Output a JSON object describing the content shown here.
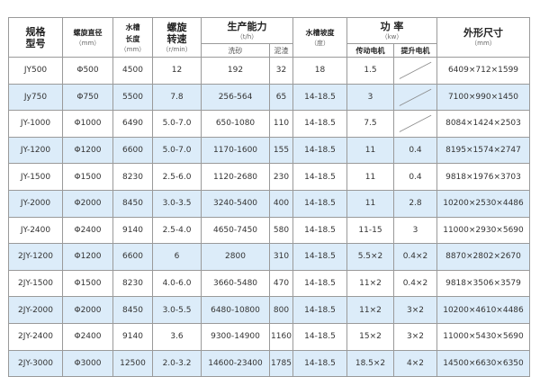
{
  "headers": {
    "model": [
      "规格",
      "型号"
    ],
    "screw_diameter": "螺旋直径",
    "screw_diameter_unit": "（mm）",
    "tank_length": [
      "水槽",
      "长度"
    ],
    "tank_length_unit": "（mm）",
    "screw_speed": [
      "螺旋",
      "转速"
    ],
    "screw_speed_unit": "（r/min）",
    "capacity": "生产能力",
    "capacity_unit": "（t/h）",
    "capacity_sand": "洗砂",
    "capacity_slurry": "泥渣",
    "tank_slope": "水槽坡度",
    "tank_slope_unit": "（度）",
    "power": "功  率",
    "power_unit": "（kw）",
    "power_drive": "传动电机",
    "power_lift": "提升电机",
    "dimensions": "外形尺寸",
    "dimensions_unit": "（mm）"
  },
  "rows": [
    {
      "model": "JY500",
      "diameter": "Φ500",
      "length": "4500",
      "speed": "12",
      "sand": "192",
      "slurry": "32",
      "slope": "18",
      "drive": "1.5",
      "lift": "",
      "dims": "6409×712×1599"
    },
    {
      "model": "Jy750",
      "diameter": "Φ750",
      "length": "5500",
      "speed": "7.8",
      "sand": "256-564",
      "slurry": "65",
      "slope": "14-18.5",
      "drive": "3",
      "lift": "",
      "dims": "7100×990×1450"
    },
    {
      "model": "JY-1000",
      "diameter": "Φ1000",
      "length": "6490",
      "speed": "5.0-7.0",
      "sand": "650-1080",
      "slurry": "110",
      "slope": "14-18.5",
      "drive": "7.5",
      "lift": "",
      "dims": "8084×1424×2503"
    },
    {
      "model": "JY-1200",
      "diameter": "Φ1200",
      "length": "6600",
      "speed": "5.0-7.0",
      "sand": "1170-1600",
      "slurry": "155",
      "slope": "14-18.5",
      "drive": "11",
      "lift": "0.4",
      "dims": "8195×1574×2747"
    },
    {
      "model": "JY-1500",
      "diameter": "Φ1500",
      "length": "8230",
      "speed": "2.5-6.0",
      "sand": "1120-2680",
      "slurry": "230",
      "slope": "14-18.5",
      "drive": "11",
      "lift": "0.4",
      "dims": "9818×1976×3703"
    },
    {
      "model": "JY-2000",
      "diameter": "Φ2000",
      "length": "8450",
      "speed": "3.0-3.5",
      "sand": "3240-5400",
      "slurry": "400",
      "slope": "14-18.5",
      "drive": "11",
      "lift": "2.8",
      "dims": "10200×2530×4486"
    },
    {
      "model": "JY-2400",
      "diameter": "Φ2400",
      "length": "9140",
      "speed": "2.5-4.0",
      "sand": "4650-7450",
      "slurry": "580",
      "slope": "14-18.5",
      "drive": "11-15",
      "lift": "3",
      "dims": "11000×2930×5690"
    },
    {
      "model": "2JY-1200",
      "diameter": "Φ1200",
      "length": "6600",
      "speed": "6",
      "sand": "2800",
      "slurry": "310",
      "slope": "14-18.5",
      "drive": "5.5×2",
      "lift": "0.4×2",
      "dims": "8870×2802×2670"
    },
    {
      "model": "2JY-1500",
      "diameter": "Φ1500",
      "length": "8230",
      "speed": "4.0-6.0",
      "sand": "3660-5480",
      "slurry": "470",
      "slope": "14-18.5",
      "drive": "11×2",
      "lift": "0.4×2",
      "dims": "9818×3506×3579"
    },
    {
      "model": "2JY-2000",
      "diameter": "Φ2000",
      "length": "8450",
      "speed": "3.0-5.5",
      "sand": "6480-10800",
      "slurry": "800",
      "slope": "14-18.5",
      "drive": "11×2",
      "lift": "3×2",
      "dims": "10200×4610×4486"
    },
    {
      "model": "2JY-2400",
      "diameter": "Φ2400",
      "length": "9140",
      "speed": "3.6",
      "sand": "9300-14900",
      "slurry": "1160",
      "slope": "14-18.5",
      "drive": "15×2",
      "lift": "3×2",
      "dims": "11000×5430×5690"
    },
    {
      "model": "2JY-3000",
      "diameter": "Φ3000",
      "length": "12500",
      "speed": "2.0-3.2",
      "sand": "14600-23400",
      "slurry": "1785",
      "slope": "14-18.5",
      "drive": "18.5×2",
      "lift": "4×2",
      "dims": "14500×6630×6350"
    }
  ],
  "colors": {
    "border": "#9a9a9a",
    "alt_row": "#dcecf9",
    "text": "#333333"
  }
}
